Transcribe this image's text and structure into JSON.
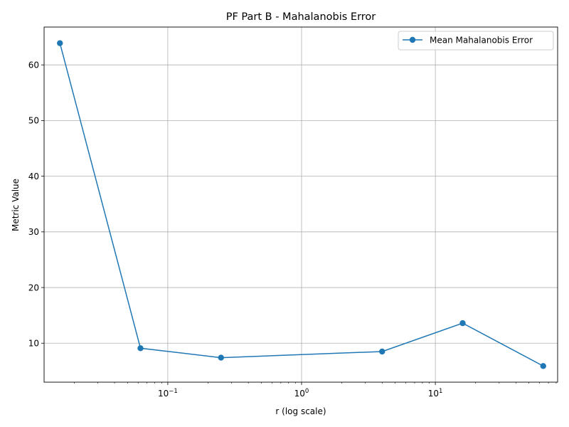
{
  "chart_data": {
    "type": "line",
    "title": "PF Part B - Mahalanobis Error",
    "xlabel": "r (log scale)",
    "ylabel": "Metric Value",
    "xscale": "log",
    "xlim": [
      0.0119,
      82
    ],
    "ylim": [
      3.0,
      66.8
    ],
    "x_ticks": [
      {
        "value": 0.1,
        "base": "10",
        "exp": "−1"
      },
      {
        "value": 1,
        "base": "10",
        "exp": "0"
      },
      {
        "value": 10,
        "base": "10",
        "exp": "1"
      }
    ],
    "y_ticks": [
      10,
      20,
      30,
      40,
      50,
      60
    ],
    "grid": true,
    "legend_position": "top-right",
    "series": [
      {
        "name": "Mean Mahalanobis Error",
        "color": "#1f77b4",
        "marker": "circle",
        "x": [
          0.015625,
          0.0625,
          0.25,
          4,
          16,
          64
        ],
        "y": [
          63.9,
          9.1,
          7.4,
          8.5,
          13.6,
          5.9
        ]
      }
    ]
  }
}
